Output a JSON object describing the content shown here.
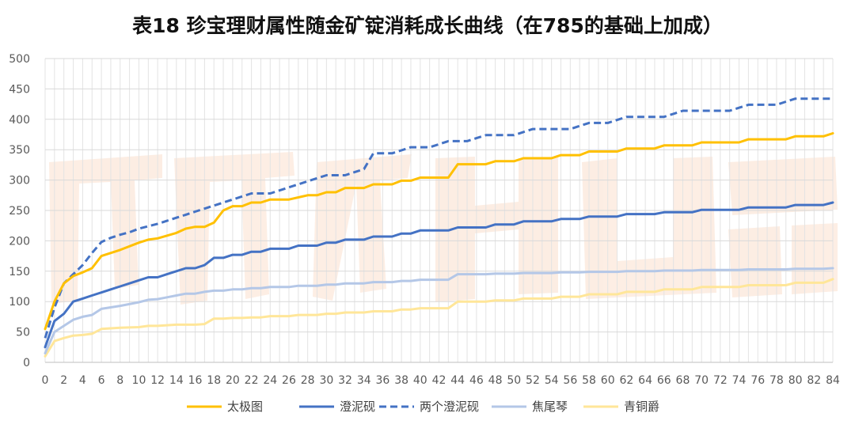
{
  "chart_data": {
    "type": "line",
    "title": "表18 珍宝理财属性随金矿锭消耗成长曲线（在785的基础上加成）",
    "xlabel": "",
    "ylabel": "",
    "xlim": [
      0,
      84
    ],
    "ylim": [
      0,
      500
    ],
    "x_ticks": [
      0,
      2,
      4,
      6,
      8,
      10,
      12,
      14,
      16,
      18,
      20,
      22,
      24,
      26,
      28,
      30,
      32,
      34,
      36,
      38,
      40,
      42,
      44,
      46,
      48,
      50,
      52,
      54,
      56,
      58,
      60,
      62,
      64,
      66,
      68,
      70,
      72,
      74,
      76,
      78,
      80,
      82,
      84
    ],
    "y_ticks": [
      0,
      50,
      100,
      150,
      200,
      250,
      300,
      350,
      400,
      450,
      500
    ],
    "grid": {
      "horizontal": true,
      "vertical": true
    },
    "legend_position": "bottom",
    "series": [
      {
        "name": "太极图",
        "color": "#FFC000",
        "style": "solid",
        "points": [
          [
            0,
            55
          ],
          [
            1,
            100
          ],
          [
            2,
            130
          ],
          [
            3,
            142
          ],
          [
            4,
            148
          ],
          [
            5,
            155
          ],
          [
            6,
            175
          ],
          [
            8,
            185
          ],
          [
            10,
            197
          ],
          [
            11,
            202
          ],
          [
            12,
            204
          ],
          [
            14,
            213
          ],
          [
            15,
            220
          ],
          [
            16,
            223
          ],
          [
            17,
            223
          ],
          [
            18,
            230
          ],
          [
            19,
            250
          ],
          [
            20,
            257
          ],
          [
            21,
            257
          ],
          [
            22,
            263
          ],
          [
            23,
            263
          ],
          [
            24,
            268
          ],
          [
            26,
            268
          ],
          [
            28,
            275
          ],
          [
            29,
            275
          ],
          [
            30,
            280
          ],
          [
            31,
            280
          ],
          [
            32,
            287
          ],
          [
            34,
            287
          ],
          [
            35,
            293
          ],
          [
            37,
            293
          ],
          [
            38,
            299
          ],
          [
            39,
            299
          ],
          [
            40,
            304
          ],
          [
            43,
            304
          ],
          [
            44,
            326
          ],
          [
            47,
            326
          ],
          [
            48,
            331
          ],
          [
            50,
            331
          ],
          [
            51,
            336
          ],
          [
            54,
            336
          ],
          [
            55,
            341
          ],
          [
            57,
            341
          ],
          [
            58,
            347
          ],
          [
            61,
            347
          ],
          [
            62,
            352
          ],
          [
            65,
            352
          ],
          [
            66,
            357
          ],
          [
            69,
            357
          ],
          [
            70,
            362
          ],
          [
            74,
            362
          ],
          [
            75,
            367
          ],
          [
            79,
            367
          ],
          [
            80,
            372
          ],
          [
            83,
            372
          ],
          [
            84,
            377
          ]
        ]
      },
      {
        "name": "澄泥砚",
        "color": "#4472C4",
        "style": "solid",
        "points": [
          [
            0,
            25
          ],
          [
            1,
            68
          ],
          [
            2,
            80
          ],
          [
            3,
            100
          ],
          [
            4,
            105
          ],
          [
            5,
            110
          ],
          [
            6,
            115
          ],
          [
            7,
            120
          ],
          [
            8,
            125
          ],
          [
            9,
            130
          ],
          [
            10,
            135
          ],
          [
            11,
            140
          ],
          [
            12,
            140
          ],
          [
            13,
            145
          ],
          [
            14,
            150
          ],
          [
            15,
            155
          ],
          [
            16,
            155
          ],
          [
            17,
            160
          ],
          [
            18,
            172
          ],
          [
            19,
            172
          ],
          [
            20,
            177
          ],
          [
            21,
            177
          ],
          [
            22,
            182
          ],
          [
            23,
            182
          ],
          [
            24,
            187
          ],
          [
            26,
            187
          ],
          [
            27,
            192
          ],
          [
            29,
            192
          ],
          [
            30,
            197
          ],
          [
            31,
            197
          ],
          [
            32,
            202
          ],
          [
            34,
            202
          ],
          [
            35,
            207
          ],
          [
            37,
            207
          ],
          [
            38,
            212
          ],
          [
            39,
            212
          ],
          [
            40,
            217
          ],
          [
            43,
            217
          ],
          [
            44,
            222
          ],
          [
            47,
            222
          ],
          [
            48,
            227
          ],
          [
            50,
            227
          ],
          [
            51,
            232
          ],
          [
            54,
            232
          ],
          [
            55,
            236
          ],
          [
            57,
            236
          ],
          [
            58,
            240
          ],
          [
            61,
            240
          ],
          [
            62,
            244
          ],
          [
            65,
            244
          ],
          [
            66,
            247
          ],
          [
            69,
            247
          ],
          [
            70,
            251
          ],
          [
            74,
            251
          ],
          [
            75,
            255
          ],
          [
            79,
            255
          ],
          [
            80,
            259
          ],
          [
            83,
            259
          ],
          [
            84,
            263
          ]
        ]
      },
      {
        "name": "两个澄泥砚",
        "color": "#4472C4",
        "style": "dashed",
        "points": [
          [
            0,
            40
          ],
          [
            1,
            90
          ],
          [
            2,
            130
          ],
          [
            3,
            145
          ],
          [
            4,
            160
          ],
          [
            5,
            180
          ],
          [
            6,
            198
          ],
          [
            7,
            205
          ],
          [
            8,
            210
          ],
          [
            9,
            214
          ],
          [
            10,
            220
          ],
          [
            11,
            224
          ],
          [
            12,
            228
          ],
          [
            13,
            233
          ],
          [
            14,
            238
          ],
          [
            15,
            243
          ],
          [
            16,
            248
          ],
          [
            17,
            253
          ],
          [
            18,
            258
          ],
          [
            19,
            263
          ],
          [
            20,
            268
          ],
          [
            21,
            273
          ],
          [
            22,
            278
          ],
          [
            24,
            278
          ],
          [
            25,
            283
          ],
          [
            26,
            288
          ],
          [
            27,
            293
          ],
          [
            28,
            298
          ],
          [
            29,
            303
          ],
          [
            30,
            308
          ],
          [
            32,
            308
          ],
          [
            33,
            313
          ],
          [
            34,
            318
          ],
          [
            35,
            344
          ],
          [
            37,
            344
          ],
          [
            38,
            349
          ],
          [
            39,
            354
          ],
          [
            41,
            354
          ],
          [
            42,
            359
          ],
          [
            43,
            364
          ],
          [
            45,
            364
          ],
          [
            46,
            369
          ],
          [
            47,
            374
          ],
          [
            50,
            374
          ],
          [
            51,
            379
          ],
          [
            52,
            384
          ],
          [
            56,
            384
          ],
          [
            57,
            389
          ],
          [
            58,
            394
          ],
          [
            60,
            394
          ],
          [
            61,
            399
          ],
          [
            62,
            404
          ],
          [
            66,
            404
          ],
          [
            67,
            409
          ],
          [
            68,
            414
          ],
          [
            73,
            414
          ],
          [
            74,
            419
          ],
          [
            75,
            424
          ],
          [
            78,
            424
          ],
          [
            79,
            429
          ],
          [
            80,
            434
          ],
          [
            84,
            434
          ]
        ]
      },
      {
        "name": "焦尾琴",
        "color": "#B4C7E7",
        "style": "solid",
        "points": [
          [
            0,
            15
          ],
          [
            1,
            50
          ],
          [
            2,
            60
          ],
          [
            3,
            70
          ],
          [
            4,
            75
          ],
          [
            5,
            78
          ],
          [
            6,
            88
          ],
          [
            8,
            93
          ],
          [
            10,
            99
          ],
          [
            11,
            103
          ],
          [
            12,
            104
          ],
          [
            13,
            107
          ],
          [
            14,
            110
          ],
          [
            15,
            113
          ],
          [
            16,
            113
          ],
          [
            17,
            116
          ],
          [
            18,
            118
          ],
          [
            19,
            118
          ],
          [
            20,
            120
          ],
          [
            21,
            120
          ],
          [
            22,
            122
          ],
          [
            23,
            122
          ],
          [
            24,
            124
          ],
          [
            26,
            124
          ],
          [
            27,
            126
          ],
          [
            29,
            126
          ],
          [
            30,
            128
          ],
          [
            31,
            128
          ],
          [
            32,
            130
          ],
          [
            34,
            130
          ],
          [
            35,
            132
          ],
          [
            37,
            132
          ],
          [
            38,
            134
          ],
          [
            39,
            134
          ],
          [
            40,
            136
          ],
          [
            43,
            136
          ],
          [
            44,
            145
          ],
          [
            47,
            145
          ],
          [
            48,
            146
          ],
          [
            50,
            146
          ],
          [
            51,
            147
          ],
          [
            54,
            147
          ],
          [
            55,
            148
          ],
          [
            57,
            148
          ],
          [
            58,
            149
          ],
          [
            61,
            149
          ],
          [
            62,
            150
          ],
          [
            65,
            150
          ],
          [
            66,
            151
          ],
          [
            69,
            151
          ],
          [
            70,
            152
          ],
          [
            74,
            152
          ],
          [
            75,
            153
          ],
          [
            79,
            153
          ],
          [
            80,
            154
          ],
          [
            83,
            154
          ],
          [
            84,
            155
          ]
        ]
      },
      {
        "name": "青铜爵",
        "color": "#FFE699",
        "style": "solid",
        "points": [
          [
            0,
            10
          ],
          [
            1,
            35
          ],
          [
            2,
            40
          ],
          [
            3,
            44
          ],
          [
            4,
            45
          ],
          [
            5,
            47
          ],
          [
            6,
            55
          ],
          [
            8,
            57
          ],
          [
            10,
            58
          ],
          [
            11,
            60
          ],
          [
            12,
            60
          ],
          [
            14,
            62
          ],
          [
            16,
            62
          ],
          [
            17,
            63
          ],
          [
            18,
            72
          ],
          [
            19,
            72
          ],
          [
            20,
            73
          ],
          [
            21,
            73
          ],
          [
            22,
            74
          ],
          [
            23,
            74
          ],
          [
            24,
            76
          ],
          [
            26,
            76
          ],
          [
            27,
            78
          ],
          [
            29,
            78
          ],
          [
            30,
            80
          ],
          [
            31,
            80
          ],
          [
            32,
            82
          ],
          [
            34,
            82
          ],
          [
            35,
            84
          ],
          [
            37,
            84
          ],
          [
            38,
            87
          ],
          [
            39,
            87
          ],
          [
            40,
            89
          ],
          [
            43,
            89
          ],
          [
            44,
            100
          ],
          [
            47,
            100
          ],
          [
            48,
            102
          ],
          [
            50,
            102
          ],
          [
            51,
            105
          ],
          [
            54,
            105
          ],
          [
            55,
            108
          ],
          [
            57,
            108
          ],
          [
            58,
            112
          ],
          [
            61,
            112
          ],
          [
            62,
            116
          ],
          [
            65,
            116
          ],
          [
            66,
            120
          ],
          [
            69,
            120
          ],
          [
            70,
            124
          ],
          [
            74,
            124
          ],
          [
            75,
            127
          ],
          [
            79,
            127
          ],
          [
            80,
            131
          ],
          [
            83,
            131
          ],
          [
            84,
            137
          ]
        ]
      }
    ]
  }
}
